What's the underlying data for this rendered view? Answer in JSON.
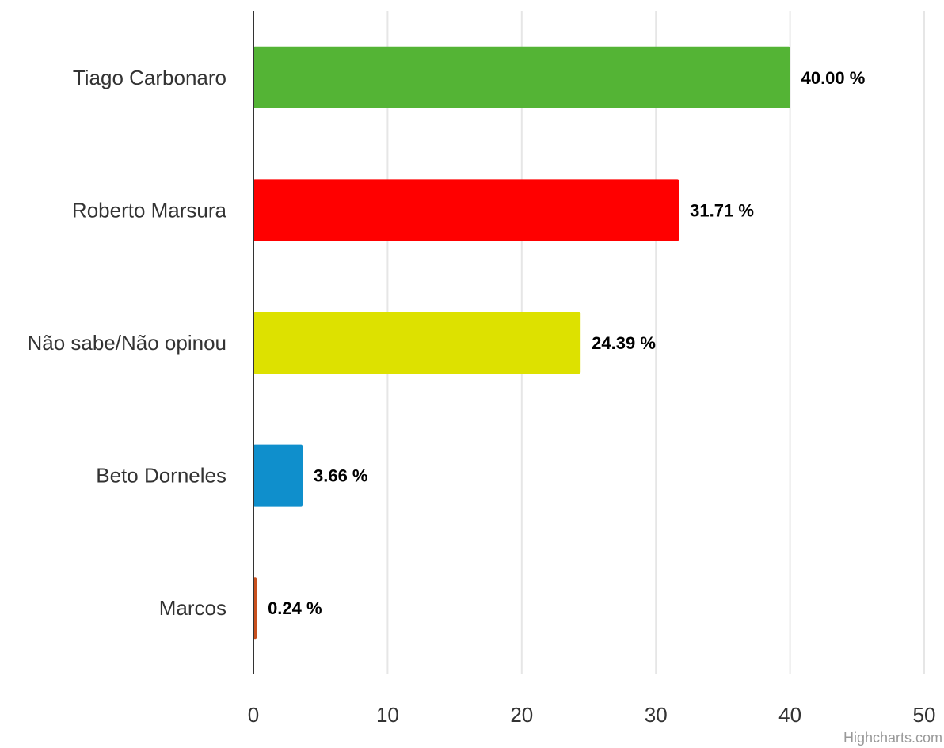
{
  "chart_data": {
    "type": "bar",
    "orientation": "horizontal",
    "categories": [
      "Tiago Carbonaro",
      "Roberto Marsura",
      "Não sabe/Não opinou",
      "Beto Dorneles",
      "Marcos"
    ],
    "values": [
      40.0,
      31.71,
      24.39,
      3.66,
      0.24
    ],
    "data_labels": [
      "40.00 %",
      "31.71 %",
      "24.39 %",
      "3.66 %",
      "0.24 %"
    ],
    "colors": [
      "#54b435",
      "#ff0000",
      "#dde100",
      "#0f8fcc",
      "#c8501e"
    ],
    "xlim": [
      0,
      50
    ],
    "x_ticks": [
      0,
      10,
      20,
      30,
      40,
      50
    ],
    "x_tick_labels": [
      "0",
      "10",
      "20",
      "30",
      "40",
      "50"
    ],
    "grid": "vertical",
    "legend": "none",
    "title": "",
    "xlabel": "",
    "ylabel": ""
  },
  "credit": "Highcharts.com"
}
